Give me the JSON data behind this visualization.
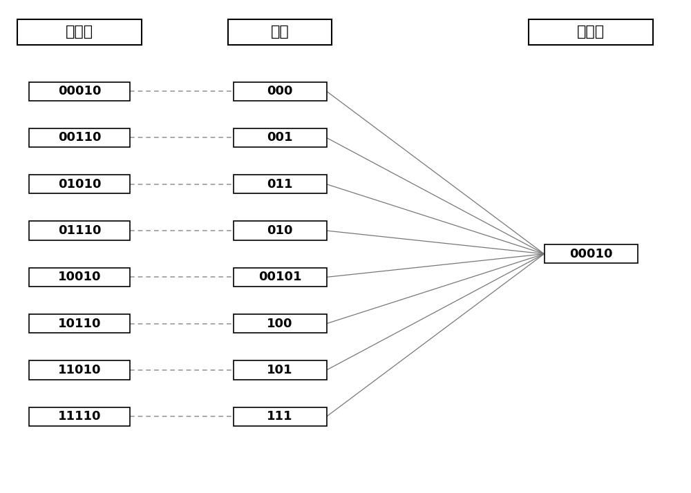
{
  "title_left": "映射前",
  "title_middle": "标签",
  "title_right": "映射后",
  "left_labels": [
    "00010",
    "00110",
    "01010",
    "01110",
    "10010",
    "10110",
    "11010",
    "11110"
  ],
  "middle_labels": [
    "000",
    "001",
    "011",
    "010",
    "00101",
    "100",
    "101",
    "111"
  ],
  "right_label": "00010",
  "bg_color": "#ffffff",
  "box_edge_color": "#000000",
  "line_color": "#777777",
  "dashed_color": "#999999",
  "text_color": "#000000",
  "title_fontsize": 16,
  "label_fontsize": 13,
  "fig_width": 10.0,
  "fig_height": 7.14
}
